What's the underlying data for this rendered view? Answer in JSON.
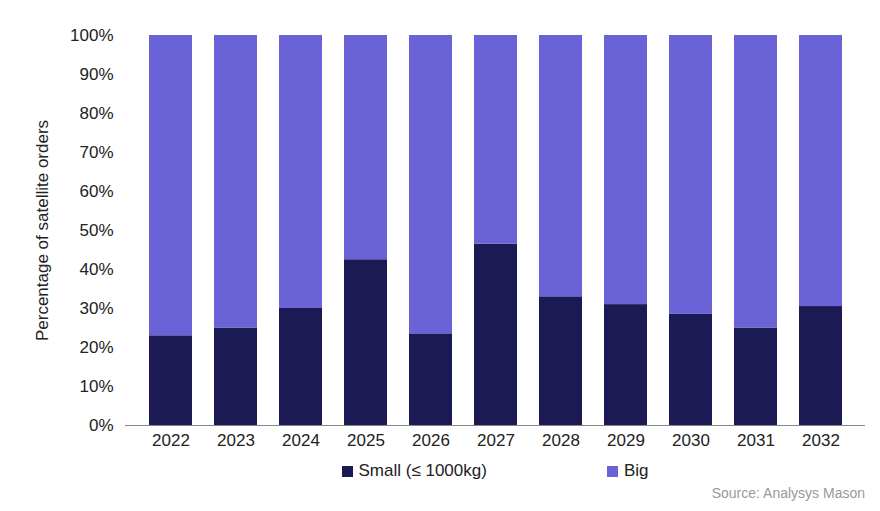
{
  "chart_data": {
    "type": "bar",
    "stacked": true,
    "y_label": "Percentage of satellite orders",
    "source": "Source: Analysys Mason",
    "categories": [
      "2022",
      "2023",
      "2024",
      "2025",
      "2026",
      "2027",
      "2028",
      "2029",
      "2030",
      "2031",
      "2032"
    ],
    "series": [
      {
        "name": "Small (≤ 1000kg)",
        "color": "#1b1a55",
        "values": [
          23,
          25,
          30,
          42.5,
          23.5,
          46.5,
          33,
          31,
          28.5,
          25,
          30.5
        ]
      },
      {
        "name": "Big",
        "color": "#6a63d8",
        "values": [
          77,
          75,
          70,
          57.5,
          76.5,
          53.5,
          67,
          69,
          71.5,
          75,
          69.5
        ]
      }
    ],
    "ylim": [
      0,
      100
    ],
    "yticks": [
      {
        "value": 0,
        "label": "0%"
      },
      {
        "value": 10,
        "label": "10%"
      },
      {
        "value": 20,
        "label": "20%"
      },
      {
        "value": 30,
        "label": "30%"
      },
      {
        "value": 40,
        "label": "40%"
      },
      {
        "value": 50,
        "label": "50%"
      },
      {
        "value": 60,
        "label": "60%"
      },
      {
        "value": 70,
        "label": "70%"
      },
      {
        "value": 80,
        "label": "80%"
      },
      {
        "value": 90,
        "label": "90%"
      },
      {
        "value": 100,
        "label": "100%"
      }
    ],
    "legend": "bottom",
    "grid": false
  }
}
